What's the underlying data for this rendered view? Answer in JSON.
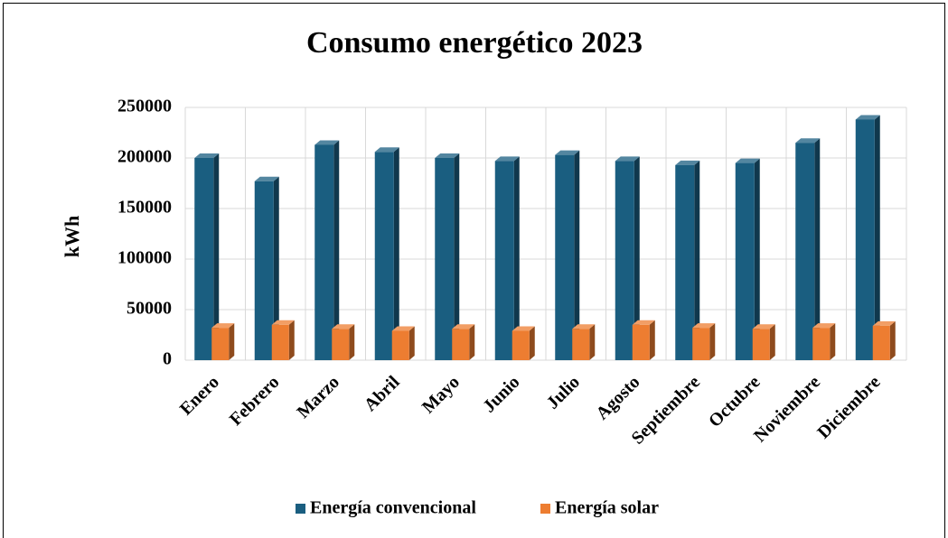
{
  "chart_data": {
    "type": "bar3d",
    "title": "Consumo energético 2023",
    "ylabel": "kWh",
    "categories": [
      "Enero",
      "Febrero",
      "Marzo",
      "Abril",
      "Mayo",
      "Junio",
      "Julio",
      "Agosto",
      "Septiembre",
      "Octubre",
      "Noviembre",
      "Diciembre"
    ],
    "series": [
      {
        "name": "Energía convencional",
        "color": "#1a5e80",
        "values": [
          200000,
          177000,
          213000,
          206000,
          200000,
          197000,
          203000,
          197000,
          193000,
          195000,
          215000,
          238000
        ]
      },
      {
        "name": "Energía solar",
        "color": "#ed7d31",
        "values": [
          32000,
          35000,
          31000,
          29000,
          31000,
          29000,
          31000,
          35000,
          32000,
          31000,
          32000,
          34000
        ]
      }
    ],
    "ylim": [
      0,
      250000
    ],
    "yticks": [
      0,
      50000,
      100000,
      150000,
      200000,
      250000
    ],
    "grid": true,
    "legend": "bottom"
  }
}
